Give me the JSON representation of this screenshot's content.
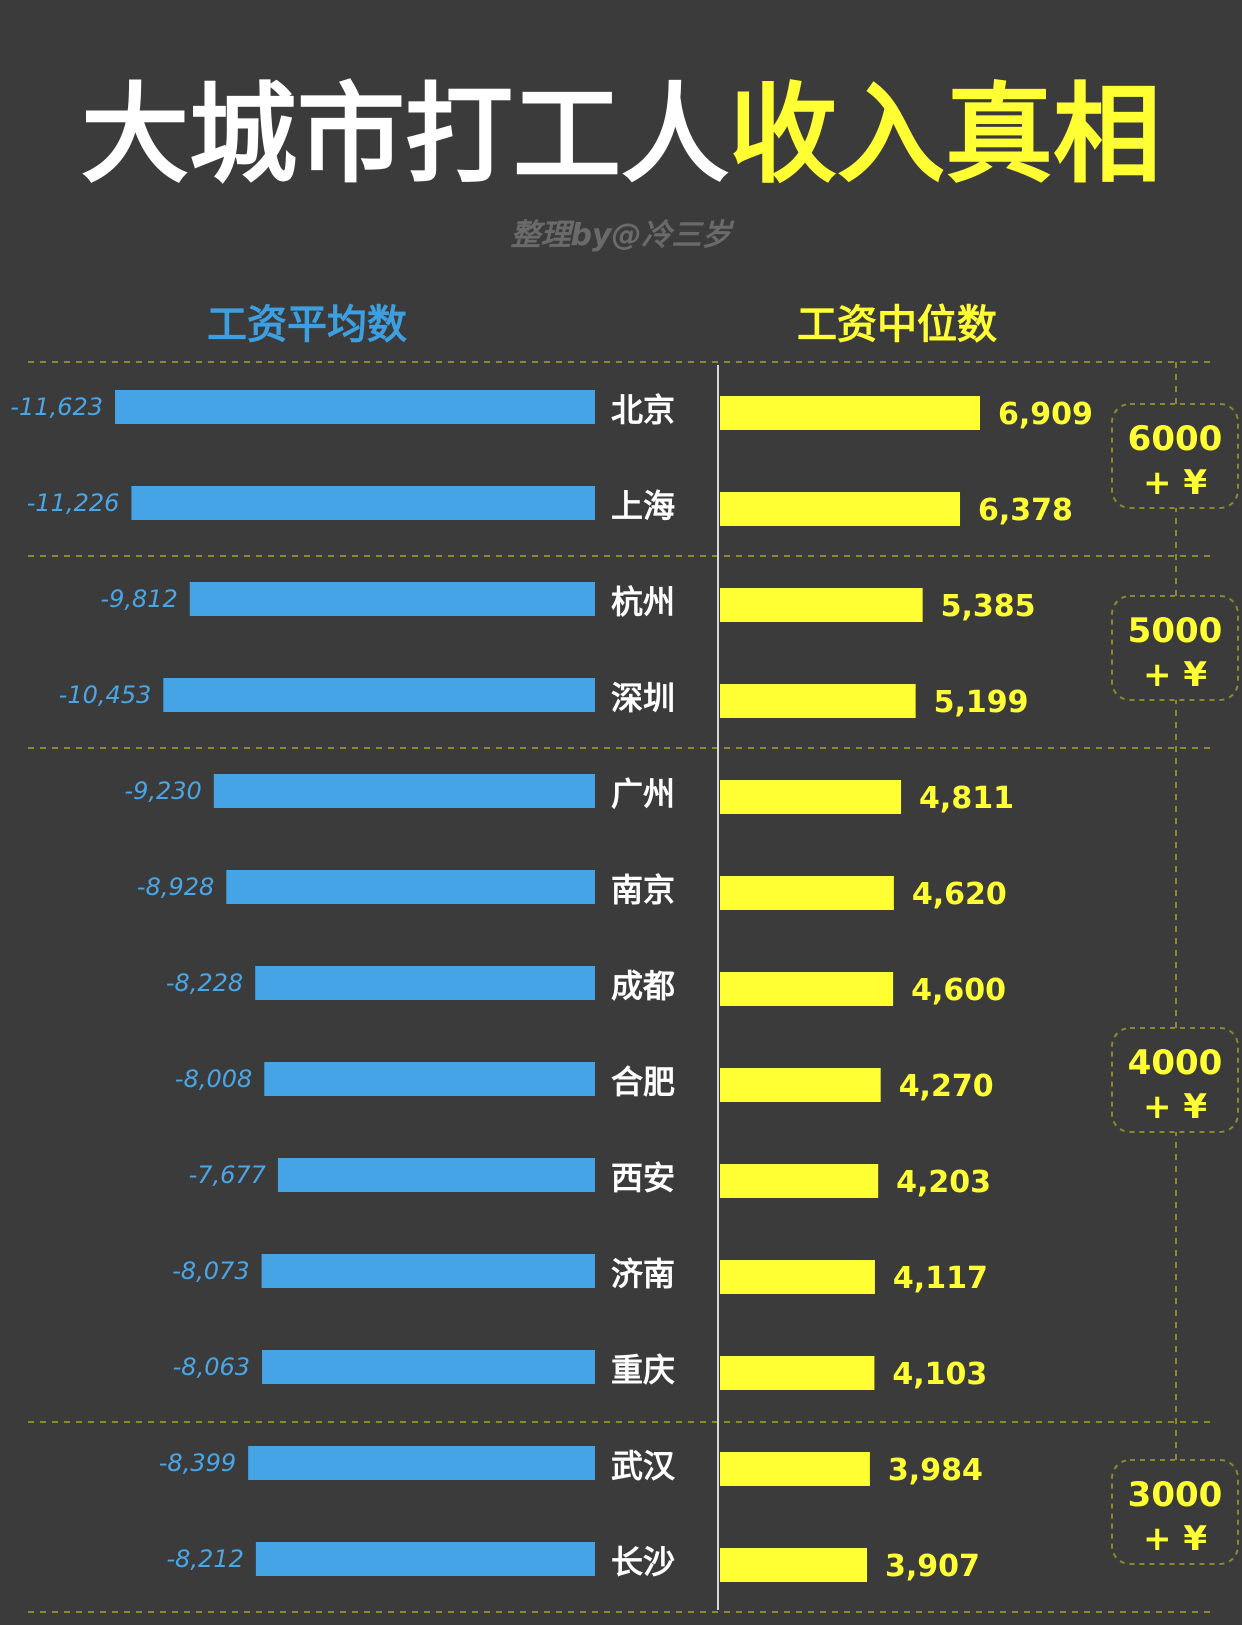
{
  "header": {
    "title_white": "大城市打工人",
    "title_yellow": "收入真相",
    "credit": "整理by@冷三岁"
  },
  "colors": {
    "background": "#3b3b3b",
    "avg_bar": "#45a4e6",
    "median_bar": "#ffff33",
    "guide": "#8a8a2a"
  },
  "chart_data": {
    "type": "bar",
    "categories": [
      "北京",
      "上海",
      "杭州",
      "深圳",
      "广州",
      "南京",
      "成都",
      "合肥",
      "西安",
      "济南",
      "重庆",
      "武汉",
      "长沙"
    ],
    "series": [
      {
        "name": "工资平均数",
        "values": [
          11623,
          11226,
          9812,
          10453,
          9230,
          8928,
          8228,
          8008,
          7677,
          8073,
          8063,
          8399,
          8212
        ],
        "labels": [
          "-11,623",
          "-11,226",
          "-9,812",
          "-10,453",
          "-9,230",
          "-8,928",
          "-8,228",
          "-8,008",
          "-7,677",
          "-8,073",
          "-8,063",
          "-8,399",
          "-8,212"
        ]
      },
      {
        "name": "工资中位数",
        "values": [
          6909,
          6378,
          5385,
          5199,
          4811,
          4620,
          4600,
          4270,
          4203,
          4117,
          4103,
          3984,
          3907
        ],
        "labels": [
          "6,909",
          "6,378",
          "5,385",
          "5,199",
          "4,811",
          "4,620",
          "4,600",
          "4,270",
          "4,203",
          "4,117",
          "4,103",
          "3,984",
          "3,907"
        ]
      }
    ],
    "tiers": [
      {
        "amount": "6000",
        "suffix": "+ ¥",
        "rows": [
          0,
          1
        ]
      },
      {
        "amount": "5000",
        "suffix": "+ ¥",
        "rows": [
          2,
          3
        ]
      },
      {
        "amount": "4000",
        "suffix": "+ ¥",
        "rows": [
          4,
          10
        ]
      },
      {
        "amount": "3000",
        "suffix": "+ ¥",
        "rows": [
          11,
          12
        ]
      }
    ]
  }
}
